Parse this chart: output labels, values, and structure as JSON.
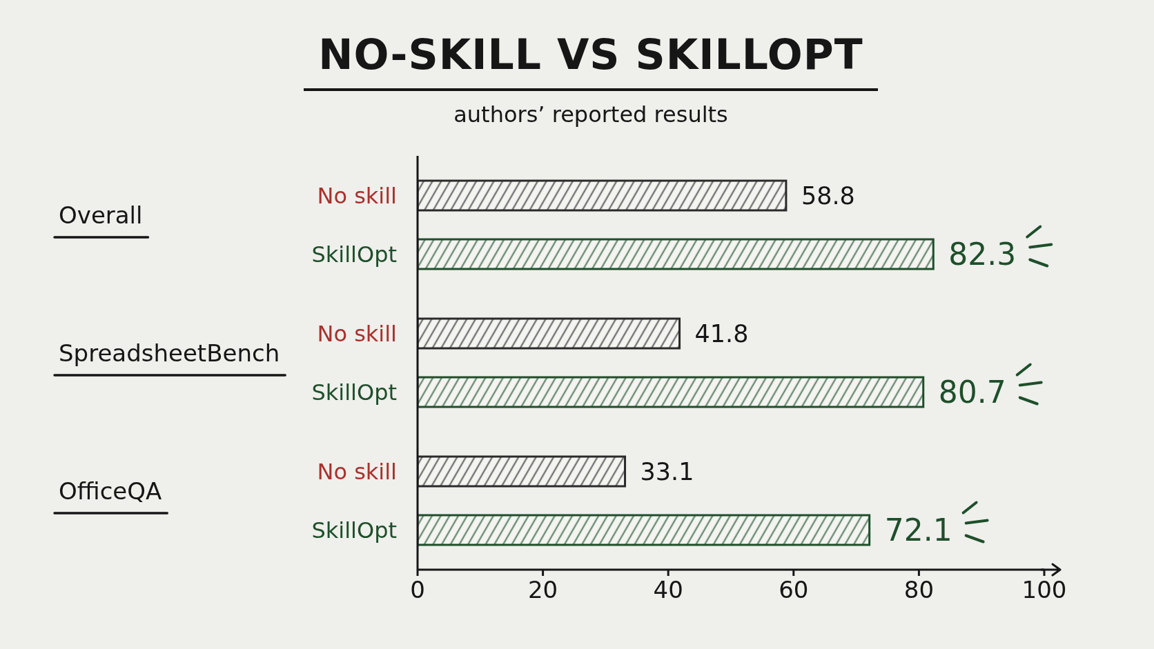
{
  "chart_data": {
    "type": "bar",
    "orientation": "horizontal",
    "title": "NO-SKILL VS SKILLOPT",
    "subtitle": "authors’ reported results",
    "categories": [
      "Overall",
      "SpreadsheetBench",
      "OfficeQA"
    ],
    "series": [
      {
        "name": "No skill",
        "color": "#2a2a2a",
        "values": [
          58.8,
          41.8,
          33.1
        ]
      },
      {
        "name": "SkillOpt",
        "color": "#1e4f2a",
        "values": [
          82.3,
          80.7,
          72.1
        ]
      }
    ],
    "xlim": [
      0,
      100
    ],
    "xticks": [
      0,
      20,
      40,
      60,
      80,
      100
    ],
    "data_labels": true
  }
}
